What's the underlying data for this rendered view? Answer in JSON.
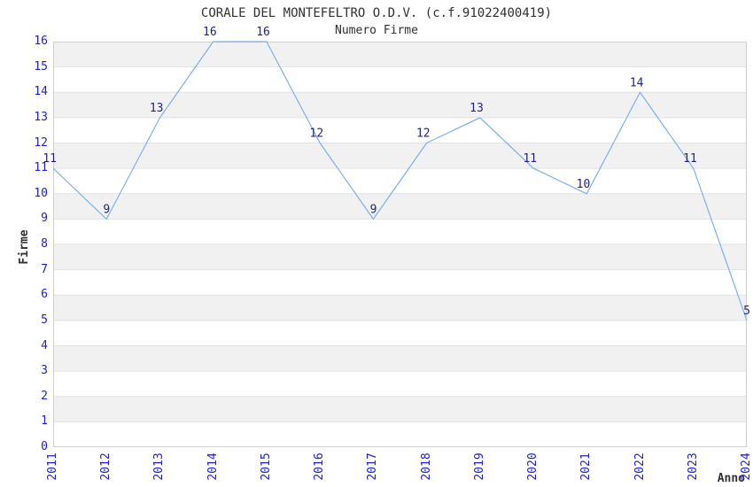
{
  "title": "CORALE DEL MONTEFELTRO O.D.V. (c.f.91022400419)",
  "subtitle": "Numero Firme",
  "chart_data": {
    "type": "line",
    "title": "CORALE DEL MONTEFELTRO O.D.V. (c.f.91022400419)",
    "subtitle": "Numero Firme",
    "xlabel": "Anno",
    "ylabel": "Firme",
    "x": [
      "2011",
      "2012",
      "2013",
      "2014",
      "2015",
      "2016",
      "2017",
      "2018",
      "2019",
      "2020",
      "2021",
      "2022",
      "2023",
      "2024"
    ],
    "values": [
      11,
      9,
      13,
      16,
      16,
      12,
      9,
      12,
      13,
      11,
      10,
      14,
      11,
      5
    ],
    "ylim": [
      0,
      16
    ],
    "ytick_step": 1,
    "grid": "horizontal zebra stripes, gridline at every integer",
    "legend_position": "none",
    "colors": {
      "line": "#7fb0e6",
      "point_label": "#232380",
      "tick_label": "#2020d0",
      "text": "#303030",
      "stripe": "#f1f1f1",
      "gridline": "#e2e2e2",
      "plot_border": "#d0d0d0",
      "background": "#ffffff"
    }
  }
}
